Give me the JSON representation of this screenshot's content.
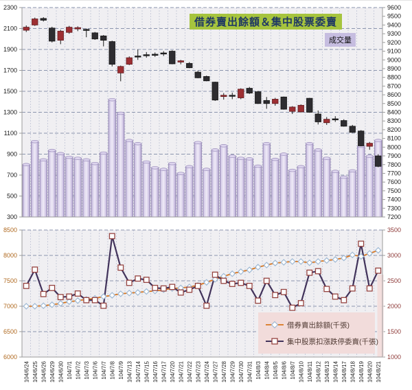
{
  "title": "借券賣出餘額＆集中股票委賣",
  "volume_label": "成交量",
  "legend": {
    "series1": "借券賣出餘額(千張)",
    "series2": "集中股票扣漲跌停委賣(千張)"
  },
  "colors": {
    "title_bg": "#a6c43e",
    "title_text": "#1f3864",
    "volume_label_bg": "#c6bde0",
    "volume_label_text": "#111111",
    "plot_bg": "#f0eff2",
    "grid_h": "#8b94ad",
    "grid_v": "#c9ccdb",
    "axis_line": "#9b9b9b",
    "bar_edge": "#8f81ad",
    "bar_mid": "#efeaf7",
    "bar_dark": "#a99bc8",
    "candle_up": "#9d2f33",
    "candle_up_edge": "#5f1c20",
    "candle_down": "#2e2d31",
    "candle_down_edge": "#141414",
    "wick": "#1a1a1a",
    "axis1_text": "#1a1a1a",
    "axis2_left_text": "#b06a21",
    "axis2_right_text": "#8e3a38",
    "date_text": "#222222",
    "series1_line": "#d9771f",
    "series1_marker_edge": "#9fb9d4",
    "series2_line": "#41325a",
    "series2_marker_edge": "#94423f",
    "marker_fill": "#ffffff",
    "legend_bg": "#f2dcdb",
    "highlight_band": "#f2dcdb"
  },
  "chart_data": [
    {
      "type": "candlestick+bar",
      "panel": "top",
      "title": "借券賣出餘額＆集中股票委賣",
      "bar_series_name": "成交量",
      "left_axis": {
        "min": 300,
        "max": 2300,
        "step": 200,
        "applies_to": "volume bars"
      },
      "right_axis": {
        "min": 7200,
        "max": 9600,
        "step": 100,
        "applies_to": "candlesticks"
      },
      "grid": true,
      "x": [
        "104/6/24",
        "104/6/25",
        "104/6/26",
        "104/6/29",
        "104/6/30",
        "104/7/1",
        "104/7/2",
        "104/7/3",
        "104/7/6",
        "104/7/7",
        "104/7/8",
        "104/7/9",
        "104/7/13",
        "104/7/14",
        "104/7/15",
        "104/7/16",
        "104/7/17",
        "104/7/20",
        "104/7/21",
        "104/7/22",
        "104/7/23",
        "104/7/24",
        "104/7/27",
        "104/7/28",
        "104/7/29",
        "104/7/30",
        "104/7/31",
        "104/8/3",
        "104/8/4",
        "104/8/5",
        "104/8/6",
        "104/8/7",
        "104/8/10",
        "104/8/11",
        "104/8/12",
        "104/8/13",
        "104/8/14",
        "104/8/17",
        "104/8/18",
        "104/8/19",
        "104/8/20",
        "104/8/21"
      ],
      "candles_ohlc": [
        [
          9340,
          9395,
          9320,
          9375
        ],
        [
          9400,
          9485,
          9390,
          9470
        ],
        [
          9475,
          9490,
          9440,
          9455
        ],
        [
          9365,
          9380,
          9200,
          9215
        ],
        [
          9225,
          9345,
          9180,
          9330
        ],
        [
          9315,
          9390,
          9300,
          9375
        ],
        [
          9355,
          9385,
          9330,
          9370
        ],
        [
          9350,
          9360,
          9260,
          9345
        ],
        [
          9310,
          9320,
          9230,
          9240
        ],
        [
          9275,
          9285,
          9155,
          9225
        ],
        [
          9210,
          9220,
          8925,
          8950
        ],
        [
          8850,
          8935,
          8755,
          8925
        ],
        [
          8950,
          9040,
          8940,
          9025
        ],
        [
          9045,
          9120,
          9000,
          9040
        ],
        [
          9060,
          9090,
          9025,
          9050
        ],
        [
          9065,
          9085,
          9035,
          9055
        ],
        [
          9080,
          9100,
          9045,
          9070
        ],
        [
          9100,
          9110,
          8950,
          8955
        ],
        [
          8975,
          9000,
          8950,
          8990
        ],
        [
          8960,
          8975,
          8905,
          8910
        ],
        [
          8860,
          8875,
          8790,
          8795
        ],
        [
          8810,
          8820,
          8755,
          8760
        ],
        [
          8745,
          8750,
          8530,
          8540
        ],
        [
          8580,
          8620,
          8545,
          8595
        ],
        [
          8595,
          8625,
          8550,
          8590
        ],
        [
          8565,
          8675,
          8550,
          8665
        ],
        [
          8675,
          8690,
          8610,
          8620
        ],
        [
          8635,
          8645,
          8495,
          8500
        ],
        [
          8535,
          8575,
          8440,
          8500
        ],
        [
          8500,
          8565,
          8475,
          8550
        ],
        [
          8575,
          8580,
          8430,
          8435
        ],
        [
          8410,
          8470,
          8380,
          8460
        ],
        [
          8405,
          8490,
          8395,
          8480
        ],
        [
          8560,
          8565,
          8395,
          8400
        ],
        [
          8380,
          8420,
          8260,
          8290
        ],
        [
          8280,
          8345,
          8255,
          8320
        ],
        [
          8325,
          8355,
          8290,
          8315
        ],
        [
          8305,
          8320,
          8235,
          8240
        ],
        [
          8240,
          8255,
          8165,
          8170
        ],
        [
          8185,
          8195,
          8010,
          8015
        ],
        [
          8010,
          8060,
          7970,
          8045
        ],
        [
          7900,
          7920,
          7770,
          7780
        ]
      ],
      "volume": [
        800,
        1020,
        845,
        935,
        905,
        870,
        860,
        845,
        810,
        910,
        1420,
        1290,
        1030,
        1000,
        825,
        770,
        755,
        810,
        715,
        780,
        1010,
        755,
        940,
        980,
        880,
        860,
        855,
        785,
        1000,
        850,
        900,
        745,
        780,
        1000,
        940,
        860,
        735,
        680,
        740,
        975,
        880,
        1030
      ]
    },
    {
      "type": "line",
      "panel": "bottom",
      "left_axis": {
        "min": 6000,
        "max": 8500,
        "step": 500
      },
      "right_axis": {
        "min": 1000,
        "max": 3500,
        "step": 500
      },
      "grid": true,
      "legend_position": "bottom-right",
      "series": [
        {
          "name": "借券賣出餘額(千張)",
          "marker": "diamond",
          "values": [
            7000,
            7000,
            7010,
            7030,
            7055,
            7090,
            7110,
            7135,
            7155,
            7190,
            7215,
            7245,
            7260,
            7270,
            7290,
            7300,
            7325,
            7350,
            7360,
            7380,
            7410,
            7470,
            7530,
            7590,
            7640,
            7680,
            7715,
            7770,
            7810,
            7850,
            7865,
            7880,
            7880,
            7855,
            7880,
            7900,
            7920,
            7950,
            8010,
            7980,
            8040,
            8100
          ]
        },
        {
          "name": "集中股票扣漲跌停委賣(千張)",
          "marker": "square",
          "values": [
            7400,
            7720,
            7240,
            7360,
            7180,
            7190,
            7250,
            7120,
            7120,
            7010,
            8380,
            7760,
            7460,
            7545,
            7520,
            7360,
            7350,
            7380,
            7270,
            7325,
            7400,
            7010,
            7620,
            7500,
            7440,
            7460,
            7400,
            7110,
            7500,
            7220,
            7280,
            6970,
            7060,
            7660,
            7690,
            7340,
            7190,
            7120,
            7350,
            8230,
            7350,
            7700
          ]
        }
      ]
    }
  ]
}
